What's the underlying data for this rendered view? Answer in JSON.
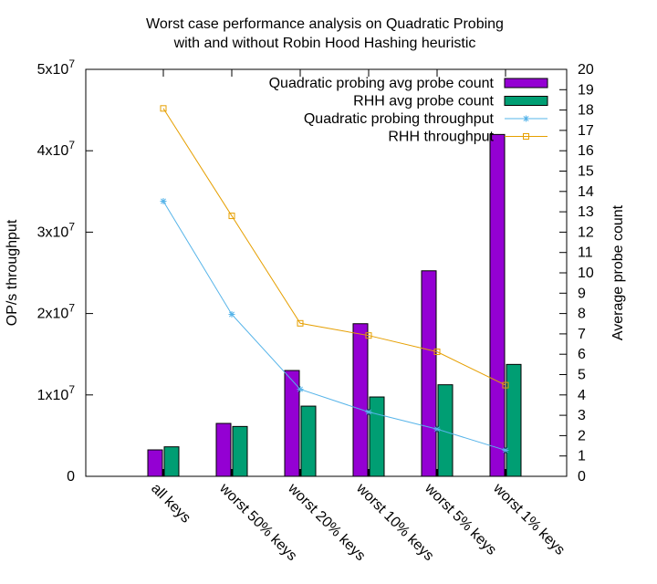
{
  "chart_data": {
    "type": "bar",
    "title": [
      "Worst case performance analysis on Quadratic Probing",
      "with and without Robin Hood Hashing heuristic"
    ],
    "ylabel": "OP/s throughput",
    "y2label": "Average probe count",
    "categories": [
      "all keys",
      "worst 50% keys",
      "worst 20% keys",
      "worst 10% keys",
      "worst 5% keys",
      "worst 1% keys"
    ],
    "ylim": [
      0,
      50000000
    ],
    "y2lim": [
      0,
      20
    ],
    "yticks": [
      {
        "value": 0,
        "base": "0",
        "exp": ""
      },
      {
        "value": 10000000,
        "base": "1x10",
        "exp": "7"
      },
      {
        "value": 20000000,
        "base": "2x10",
        "exp": "7"
      },
      {
        "value": 30000000,
        "base": "3x10",
        "exp": "7"
      },
      {
        "value": 40000000,
        "base": "4x10",
        "exp": "7"
      },
      {
        "value": 50000000,
        "base": "5x10",
        "exp": "7"
      }
    ],
    "y2ticks": [
      "0",
      "1",
      "2",
      "3",
      "4",
      "5",
      "6",
      "7",
      "8",
      "9",
      "10",
      "11",
      "12",
      "13",
      "14",
      "15",
      "16",
      "17",
      "18",
      "19",
      "20"
    ],
    "legend_position": "top-right",
    "series": [
      {
        "name": "Quadratic probing avg probe count",
        "kind": "bar",
        "axis": "y2",
        "color": "#9400d3",
        "values": [
          1.3,
          2.6,
          5.2,
          7.5,
          10.1,
          16.8
        ]
      },
      {
        "name": "RHH avg probe count",
        "kind": "bar",
        "axis": "y2",
        "color": "#009e73",
        "values": [
          1.45,
          2.45,
          3.45,
          3.9,
          4.5,
          5.5
        ]
      },
      {
        "name": "Quadratic probing throughput",
        "kind": "line",
        "marker": "star",
        "axis": "y",
        "color": "#56b4e9",
        "values": [
          33800000,
          19900000,
          10700000,
          7900000,
          5800000,
          3200000
        ]
      },
      {
        "name": "RHH throughput",
        "kind": "line",
        "marker": "square",
        "axis": "y",
        "color": "#e69f00",
        "values": [
          45200000,
          32000000,
          18800000,
          17300000,
          15300000,
          11200000
        ]
      }
    ]
  }
}
